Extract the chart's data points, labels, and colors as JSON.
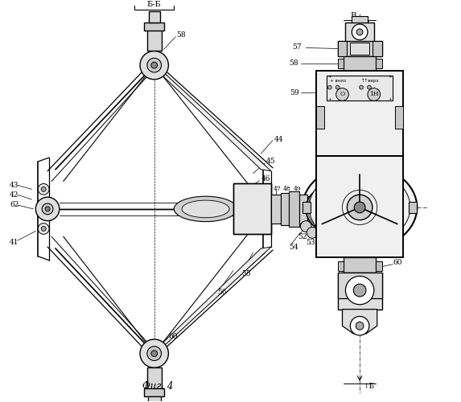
{
  "bg": "#ffffff",
  "lc": "#000000",
  "lw": 0.7,
  "fs": 6.5,
  "fig_caption": "Фиг. 4",
  "section_bb": "Б-Б",
  "label_b": "Б",
  "label_v": "В"
}
